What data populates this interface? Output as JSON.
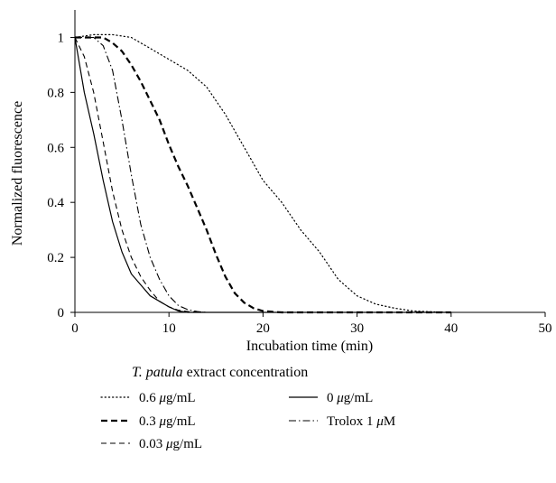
{
  "chart_data": {
    "type": "line",
    "xlabel": "Incubation time (min)",
    "ylabel": "Normalized fluorescence",
    "xlim": [
      0,
      50
    ],
    "ylim": [
      0,
      1.1
    ],
    "xticks": [
      "0",
      "10",
      "20",
      "30",
      "40",
      "50"
    ],
    "yticks": [
      "0",
      "0.2",
      "0.4",
      "0.6",
      "0.8",
      "1"
    ],
    "grid": false,
    "legend": {
      "title_italic": "T. patula",
      "title_rest": " extract concentration",
      "placement": "bottom"
    },
    "series": [
      {
        "name": "0.6 μg/mL",
        "unit_prefix": "0.6 ",
        "unit_mu": "μ",
        "unit_rest": "g/mL",
        "style": "dotted",
        "x": [
          0,
          2,
          4,
          6,
          8,
          10,
          12,
          14,
          16,
          18,
          20,
          22,
          24,
          26,
          28,
          30,
          32,
          34,
          36,
          38,
          40
        ],
        "y": [
          1.0,
          1.01,
          1.01,
          1.0,
          0.96,
          0.92,
          0.88,
          0.82,
          0.72,
          0.6,
          0.48,
          0.4,
          0.3,
          0.22,
          0.12,
          0.06,
          0.03,
          0.015,
          0.005,
          0.002,
          0.0
        ]
      },
      {
        "name": "0.3 μg/mL",
        "unit_prefix": "0.3 ",
        "unit_mu": "μ",
        "unit_rest": "g/mL",
        "style": "bold-dash",
        "x": [
          0,
          1,
          2,
          3,
          4,
          5,
          6,
          7,
          8,
          9,
          10,
          11,
          12,
          13,
          14,
          15,
          16,
          17,
          18,
          19,
          20,
          21,
          22,
          25,
          40
        ],
        "y": [
          1.0,
          1.0,
          1.0,
          1.0,
          0.98,
          0.95,
          0.9,
          0.84,
          0.77,
          0.7,
          0.61,
          0.53,
          0.46,
          0.38,
          0.3,
          0.21,
          0.13,
          0.07,
          0.035,
          0.015,
          0.005,
          0.002,
          0.0,
          0.0,
          0.0
        ]
      },
      {
        "name": "0.03 μg/mL",
        "unit_prefix": "0.03 ",
        "unit_mu": "μ",
        "unit_rest": "g/mL",
        "style": "dash",
        "x": [
          0,
          1,
          2,
          3,
          4,
          5,
          6,
          7,
          8,
          9,
          10,
          11,
          12,
          14,
          40
        ],
        "y": [
          1.0,
          0.93,
          0.8,
          0.62,
          0.44,
          0.3,
          0.2,
          0.13,
          0.08,
          0.04,
          0.02,
          0.008,
          0.003,
          0.0,
          0.0
        ]
      },
      {
        "name": "0 μg/mL",
        "unit_prefix": "0 ",
        "unit_mu": "μ",
        "unit_rest": "g/mL",
        "style": "solid",
        "x": [
          0,
          0.5,
          1,
          2,
          3,
          4,
          5,
          6,
          7,
          8,
          9,
          10,
          11,
          12,
          40
        ],
        "y": [
          1.0,
          0.9,
          0.8,
          0.65,
          0.48,
          0.33,
          0.22,
          0.14,
          0.1,
          0.06,
          0.04,
          0.02,
          0.005,
          0.0,
          0.0
        ]
      },
      {
        "name": "Trolox 1 μM",
        "unit_prefix": "Trolox 1 ",
        "unit_mu": "μ",
        "unit_rest": "M",
        "style": "dash-dot",
        "x": [
          0,
          1,
          2,
          3,
          4,
          5,
          6,
          7,
          8,
          9,
          10,
          11,
          12,
          13,
          14,
          40
        ],
        "y": [
          1.0,
          1.0,
          1.0,
          0.97,
          0.88,
          0.7,
          0.5,
          0.32,
          0.2,
          0.12,
          0.06,
          0.025,
          0.01,
          0.003,
          0.0,
          0.0
        ]
      }
    ]
  }
}
